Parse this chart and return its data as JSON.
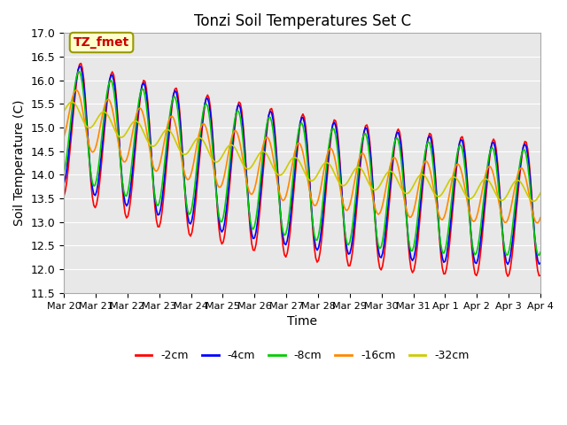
{
  "title": "Tonzi Soil Temperatures Set C",
  "xlabel": "Time",
  "ylabel": "Soil Temperature (C)",
  "ylim": [
    11.5,
    17.0
  ],
  "annotation": "TZ_fmet",
  "annotation_color": "#cc0000",
  "annotation_bg": "#ffffcc",
  "annotation_border": "#999900",
  "colors": {
    "-2cm": "#ff0000",
    "-4cm": "#0000ff",
    "-8cm": "#00cc00",
    "-16cm": "#ff8800",
    "-32cm": "#cccc00"
  },
  "x_ticks": [
    "Mar 20",
    "Mar 21",
    "Mar 22",
    "Mar 23",
    "Mar 24",
    "Mar 25",
    "Mar 26",
    "Mar 27",
    "Mar 28",
    "Mar 29",
    "Mar 30",
    "Mar 31",
    "Apr 1",
    "Apr 2",
    "Apr 3",
    "Apr 4"
  ],
  "x_tick_pos": [
    0,
    1,
    2,
    3,
    4,
    5,
    6,
    7,
    8,
    9,
    10,
    11,
    12,
    13,
    14,
    15
  ],
  "n_points": 336,
  "days": 15
}
